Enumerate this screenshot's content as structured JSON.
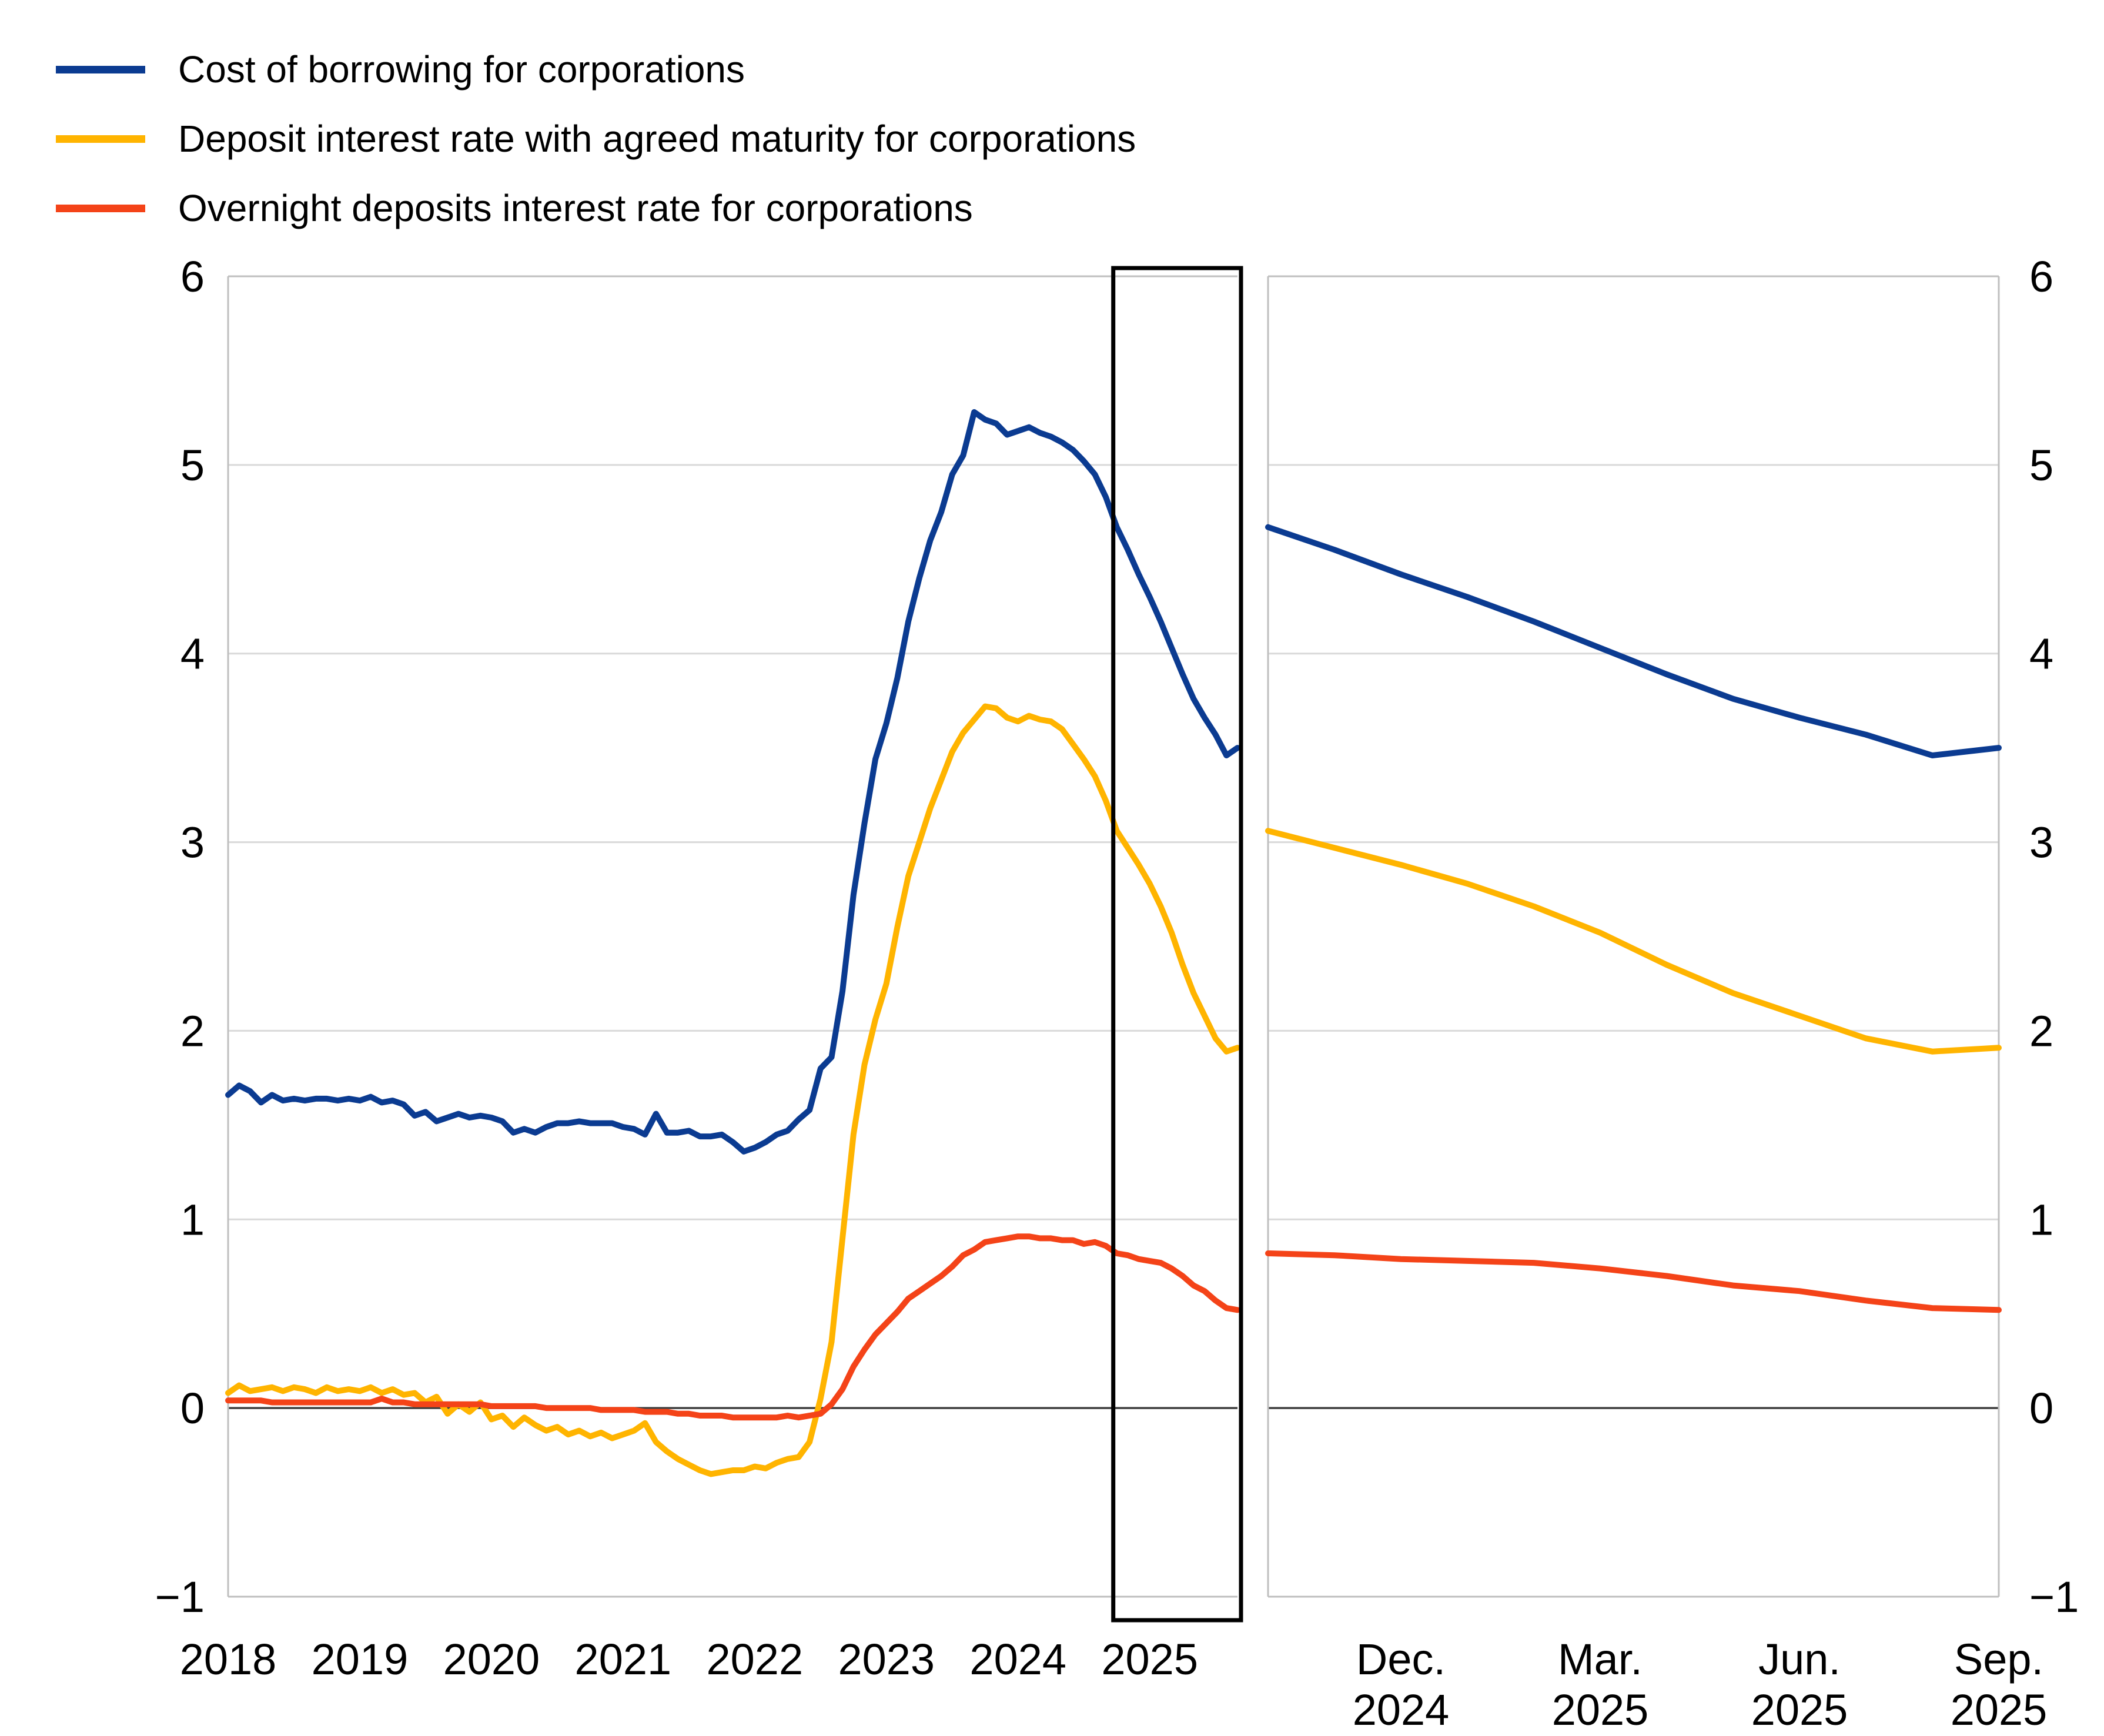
{
  "legend": {
    "items": [
      {
        "label": "Cost of borrowing for corporations",
        "color": "#0B3B91"
      },
      {
        "label": "Deposit interest rate with agreed maturity for corporations",
        "color": "#FFB400"
      },
      {
        "label": "Overnight deposits interest rate for corporations",
        "color": "#F44318"
      }
    ]
  },
  "colors": {
    "background": "#ffffff",
    "gridline": "#d9d9d9",
    "zero_line": "#404040",
    "panel_border": "#bfbfbf",
    "highlight_box": "#000000",
    "axis_text": "#000000"
  },
  "chart_data": [
    {
      "panel": "history",
      "type": "line",
      "frequency": "monthly",
      "x_start": "2018-01",
      "x_end": "2025-09",
      "x_tick_labels": [
        "2018",
        "2019",
        "2020",
        "2021",
        "2022",
        "2023",
        "2024",
        "2025"
      ],
      "x_tick_month_index": [
        0,
        12,
        24,
        36,
        48,
        60,
        72,
        84
      ],
      "ylim": [
        -1,
        6
      ],
      "y_tick_values": [
        6,
        5,
        4,
        3,
        2,
        1,
        0,
        -1
      ],
      "y_tick_labels": [
        "6",
        "5",
        "4",
        "3",
        "2",
        "1",
        "0",
        "−1"
      ],
      "grid": true,
      "legend_position": "top-left",
      "highlight_box": {
        "from": "2024-10",
        "to": "2025-09",
        "from_month_index": 81,
        "to_month_index": 92
      },
      "series": [
        {
          "name": "Cost of borrowing for corporations",
          "color": "#0B3B91",
          "values": [
            1.66,
            1.71,
            1.68,
            1.62,
            1.66,
            1.63,
            1.64,
            1.63,
            1.64,
            1.64,
            1.63,
            1.64,
            1.63,
            1.65,
            1.62,
            1.63,
            1.61,
            1.55,
            1.57,
            1.52,
            1.54,
            1.56,
            1.54,
            1.55,
            1.54,
            1.52,
            1.46,
            1.48,
            1.46,
            1.49,
            1.51,
            1.51,
            1.52,
            1.51,
            1.51,
            1.51,
            1.49,
            1.48,
            1.45,
            1.56,
            1.46,
            1.46,
            1.47,
            1.44,
            1.44,
            1.45,
            1.41,
            1.36,
            1.38,
            1.41,
            1.45,
            1.47,
            1.53,
            1.58,
            1.8,
            1.86,
            2.21,
            2.72,
            3.1,
            3.44,
            3.63,
            3.87,
            4.17,
            4.4,
            4.6,
            4.75,
            4.95,
            5.05,
            5.28,
            5.24,
            5.22,
            5.16,
            5.18,
            5.2,
            5.17,
            5.15,
            5.12,
            5.08,
            5.02,
            4.95,
            4.83,
            4.67,
            4.55,
            4.42,
            4.3,
            4.17,
            4.03,
            3.89,
            3.76,
            3.66,
            3.57,
            3.46,
            3.5
          ]
        },
        {
          "name": "Deposit interest rate with agreed maturity for corporations",
          "color": "#FFB400",
          "values": [
            0.08,
            0.12,
            0.09,
            0.1,
            0.11,
            0.09,
            0.11,
            0.1,
            0.08,
            0.11,
            0.09,
            0.1,
            0.09,
            0.11,
            0.08,
            0.1,
            0.07,
            0.08,
            0.03,
            0.06,
            -0.03,
            0.02,
            -0.02,
            0.03,
            -0.06,
            -0.04,
            -0.1,
            -0.05,
            -0.09,
            -0.12,
            -0.1,
            -0.14,
            -0.12,
            -0.15,
            -0.13,
            -0.16,
            -0.14,
            -0.12,
            -0.08,
            -0.18,
            -0.23,
            -0.27,
            -0.3,
            -0.33,
            -0.35,
            -0.34,
            -0.33,
            -0.33,
            -0.31,
            -0.32,
            -0.29,
            -0.27,
            -0.26,
            -0.18,
            0.05,
            0.35,
            0.9,
            1.45,
            1.82,
            2.06,
            2.25,
            2.55,
            2.82,
            3.0,
            3.18,
            3.33,
            3.48,
            3.58,
            3.65,
            3.72,
            3.71,
            3.66,
            3.64,
            3.67,
            3.65,
            3.64,
            3.6,
            3.52,
            3.44,
            3.35,
            3.22,
            3.06,
            2.97,
            2.88,
            2.78,
            2.66,
            2.52,
            2.35,
            2.2,
            2.08,
            1.96,
            1.89,
            1.91
          ]
        },
        {
          "name": "Overnight deposits interest rate for corporations",
          "color": "#F44318",
          "values": [
            0.04,
            0.04,
            0.04,
            0.04,
            0.03,
            0.03,
            0.03,
            0.03,
            0.03,
            0.03,
            0.03,
            0.03,
            0.03,
            0.03,
            0.05,
            0.03,
            0.03,
            0.02,
            0.02,
            0.02,
            0.02,
            0.02,
            0.02,
            0.02,
            0.01,
            0.01,
            0.01,
            0.01,
            0.01,
            0.0,
            0.0,
            0.0,
            0.0,
            0.0,
            -0.01,
            -0.01,
            -0.01,
            -0.01,
            -0.02,
            -0.02,
            -0.02,
            -0.03,
            -0.03,
            -0.04,
            -0.04,
            -0.04,
            -0.05,
            -0.05,
            -0.05,
            -0.05,
            -0.05,
            -0.04,
            -0.05,
            -0.04,
            -0.03,
            0.02,
            0.1,
            0.22,
            0.31,
            0.39,
            0.45,
            0.51,
            0.58,
            0.62,
            0.66,
            0.7,
            0.75,
            0.81,
            0.84,
            0.88,
            0.89,
            0.9,
            0.91,
            0.91,
            0.9,
            0.9,
            0.89,
            0.89,
            0.87,
            0.88,
            0.86,
            0.82,
            0.81,
            0.79,
            0.78,
            0.77,
            0.74,
            0.7,
            0.65,
            0.62,
            0.57,
            0.53,
            0.52
          ]
        }
      ]
    },
    {
      "panel": "zoom-recent",
      "type": "line",
      "frequency": "monthly",
      "x_start": "2024-10",
      "x_end": "2025-09",
      "x_tick_labels": [
        [
          "Dec.",
          "2024"
        ],
        [
          "Mar.",
          "2025"
        ],
        [
          "Jun.",
          "2025"
        ],
        [
          "Sep.",
          "2025"
        ]
      ],
      "x_tick_month_index": [
        2,
        5,
        8,
        11
      ],
      "ylim": [
        -1,
        6
      ],
      "y_tick_values": [
        6,
        5,
        4,
        3,
        2,
        1,
        0,
        -1
      ],
      "y_tick_labels": [
        "6",
        "5",
        "4",
        "3",
        "2",
        "1",
        "0",
        "−1"
      ],
      "grid": true,
      "series": [
        {
          "name": "Cost of borrowing for corporations",
          "color": "#0B3B91",
          "values": [
            4.67,
            4.55,
            4.42,
            4.3,
            4.17,
            4.03,
            3.89,
            3.76,
            3.66,
            3.57,
            3.46,
            3.5
          ]
        },
        {
          "name": "Deposit interest rate with agreed maturity for corporations",
          "color": "#FFB400",
          "values": [
            3.06,
            2.97,
            2.88,
            2.78,
            2.66,
            2.52,
            2.35,
            2.2,
            2.08,
            1.96,
            1.89,
            1.91
          ]
        },
        {
          "name": "Overnight deposits interest rate for corporations",
          "color": "#F44318",
          "values": [
            0.82,
            0.81,
            0.79,
            0.78,
            0.77,
            0.74,
            0.7,
            0.65,
            0.62,
            0.57,
            0.53,
            0.52
          ]
        }
      ]
    }
  ]
}
